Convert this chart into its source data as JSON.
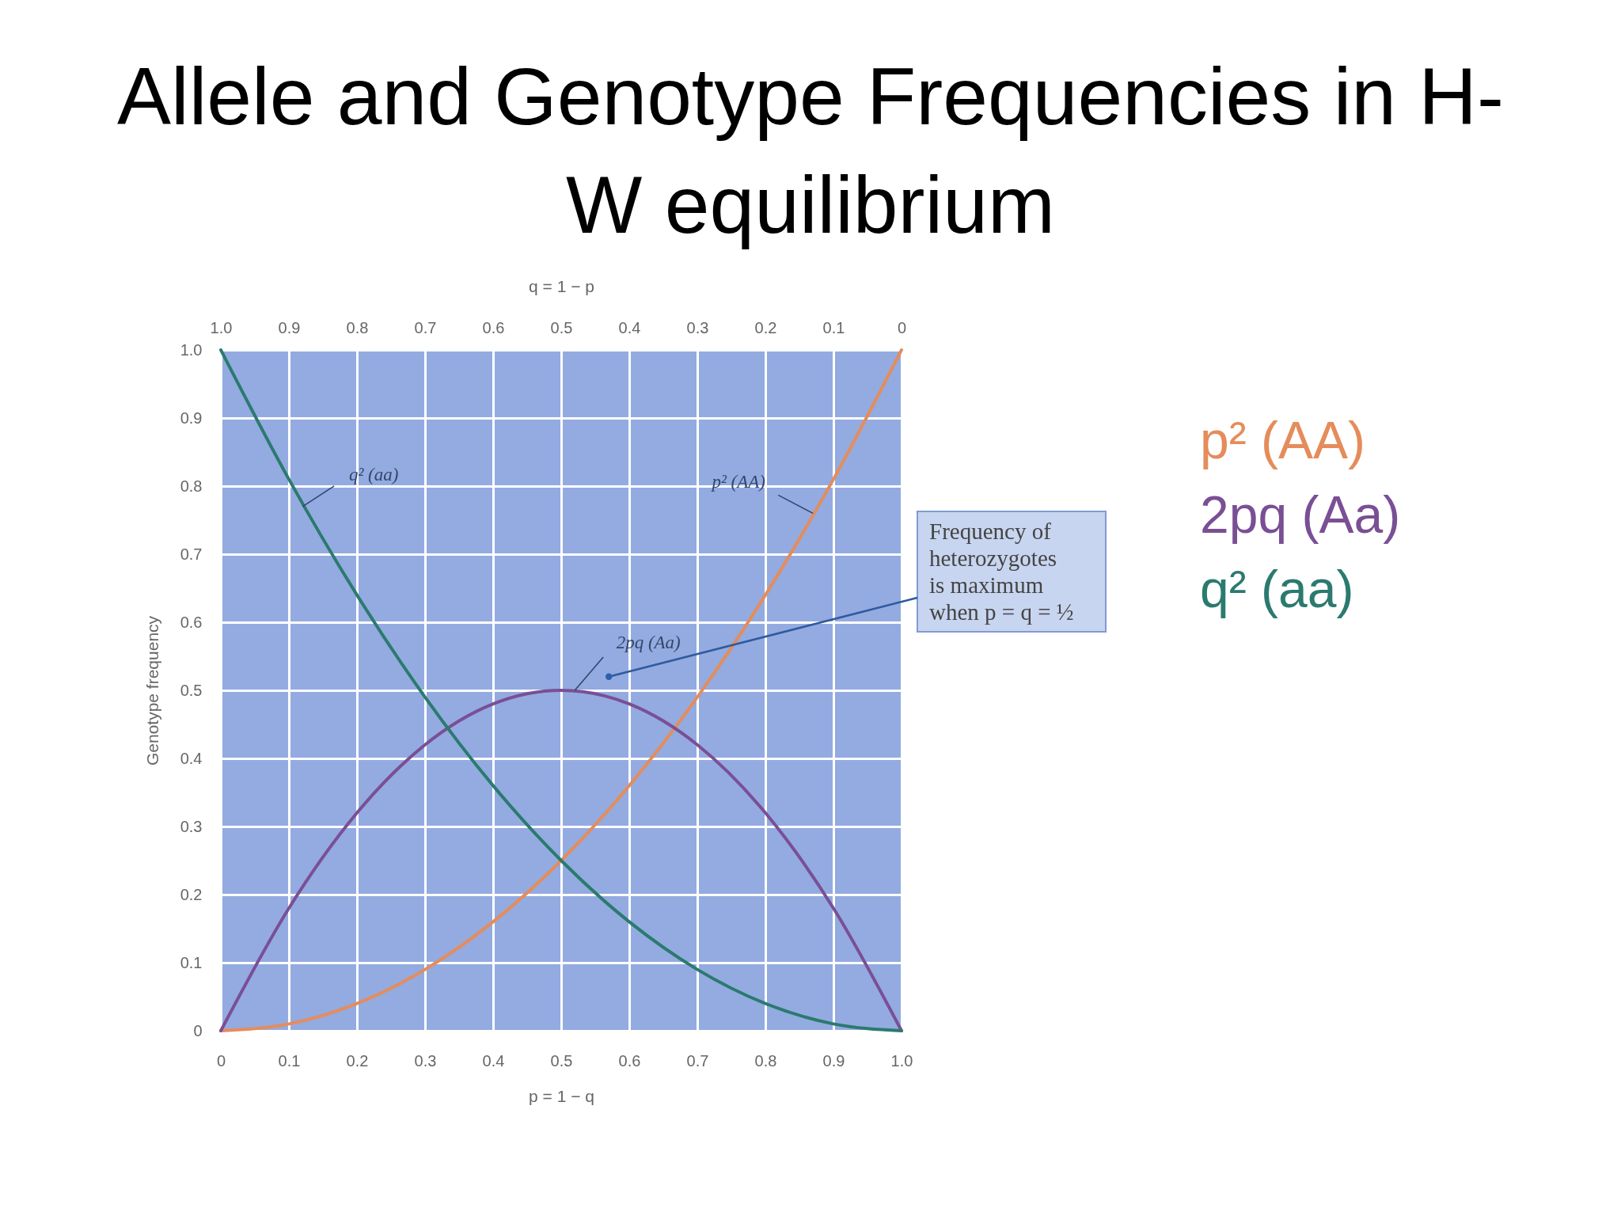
{
  "chart_data": {
    "type": "line",
    "title": "Allele and Genotype Frequencies in H-W equilibrium",
    "xlabel": "p = 1 − q",
    "x2label": "q = 1 − p",
    "ylabel": "Genotype frequency",
    "x": [
      0,
      0.1,
      0.2,
      0.3,
      0.4,
      0.5,
      0.6,
      0.7,
      0.8,
      0.9,
      1
    ],
    "series": [
      {
        "name": "p² (AA)",
        "color": "#e58c5b",
        "values": [
          0,
          0.01,
          0.04,
          0.09,
          0.16,
          0.25,
          0.36,
          0.49,
          0.64,
          0.81,
          1
        ]
      },
      {
        "name": "2pq (Aa)",
        "color": "#7a4f95",
        "values": [
          0,
          0.18,
          0.32,
          0.42,
          0.48,
          0.5,
          0.48,
          0.42,
          0.32,
          0.18,
          0
        ]
      },
      {
        "name": "q² (aa)",
        "color": "#2b7a6f",
        "values": [
          1,
          0.81,
          0.64,
          0.49,
          0.36,
          0.25,
          0.16,
          0.09,
          0.04,
          0.01,
          0
        ]
      }
    ],
    "xlim": [
      0,
      1
    ],
    "xticks": [
      0,
      0.1,
      0.2,
      0.3,
      0.4,
      0.5,
      0.6,
      0.7,
      0.8,
      0.9,
      {
        "value": 1,
        "label": "1.0"
      }
    ],
    "x2lim": [
      1,
      0
    ],
    "x2ticks": [
      {
        "value": 1,
        "label": "1.0"
      },
      0.9,
      0.8,
      0.7,
      0.6,
      0.5,
      0.4,
      0.3,
      0.2,
      0.1,
      0
    ],
    "ylim": [
      0,
      1
    ],
    "yticks": [
      0,
      0.1,
      0.2,
      0.3,
      0.4,
      0.5,
      0.6,
      0.7,
      0.8,
      0.9,
      {
        "value": 1,
        "label": "1.0"
      }
    ],
    "grid": true,
    "legend": "right",
    "annotations": [
      {
        "text": "q² (aa)",
        "x": 0.12,
        "y": 0.77
      },
      {
        "text": "p² (AA)",
        "x": 0.87,
        "y": 0.76
      },
      {
        "text": "2pq (Aa)",
        "x": 0.52,
        "y": 0.5
      },
      {
        "text": "Frequency of heterozygotes is maximum when p = q = ½",
        "x": 0.57,
        "y": 0.52
      }
    ]
  }
}
